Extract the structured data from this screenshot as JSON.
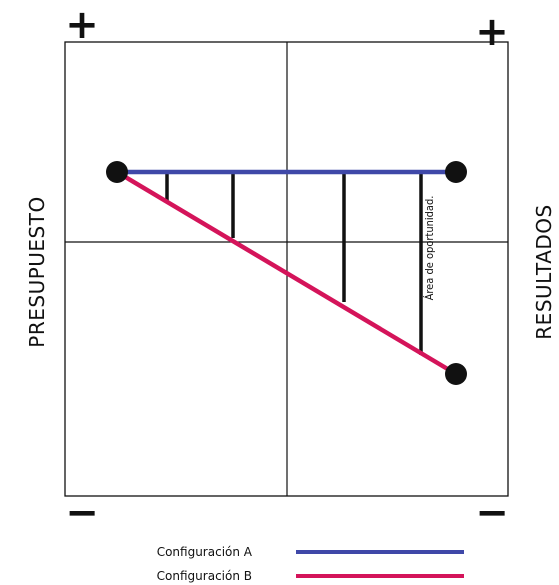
{
  "axes": {
    "left_label": "PRESUPUESTO",
    "right_label": "RESULTADOS",
    "top_left_sign": "+",
    "top_right_sign": "+",
    "bottom_left_sign": "−",
    "bottom_right_sign": "−"
  },
  "annotation": "Área de oportunidad.",
  "legend": [
    {
      "label": "Configuración  A",
      "color": "#3f48a8"
    },
    {
      "label": "Configuración B",
      "color": "#d4145a"
    }
  ],
  "colors": {
    "line_a": "#3f48a8",
    "line_b": "#d4145a",
    "frame": "#111111",
    "endpoint": "#111111"
  }
}
